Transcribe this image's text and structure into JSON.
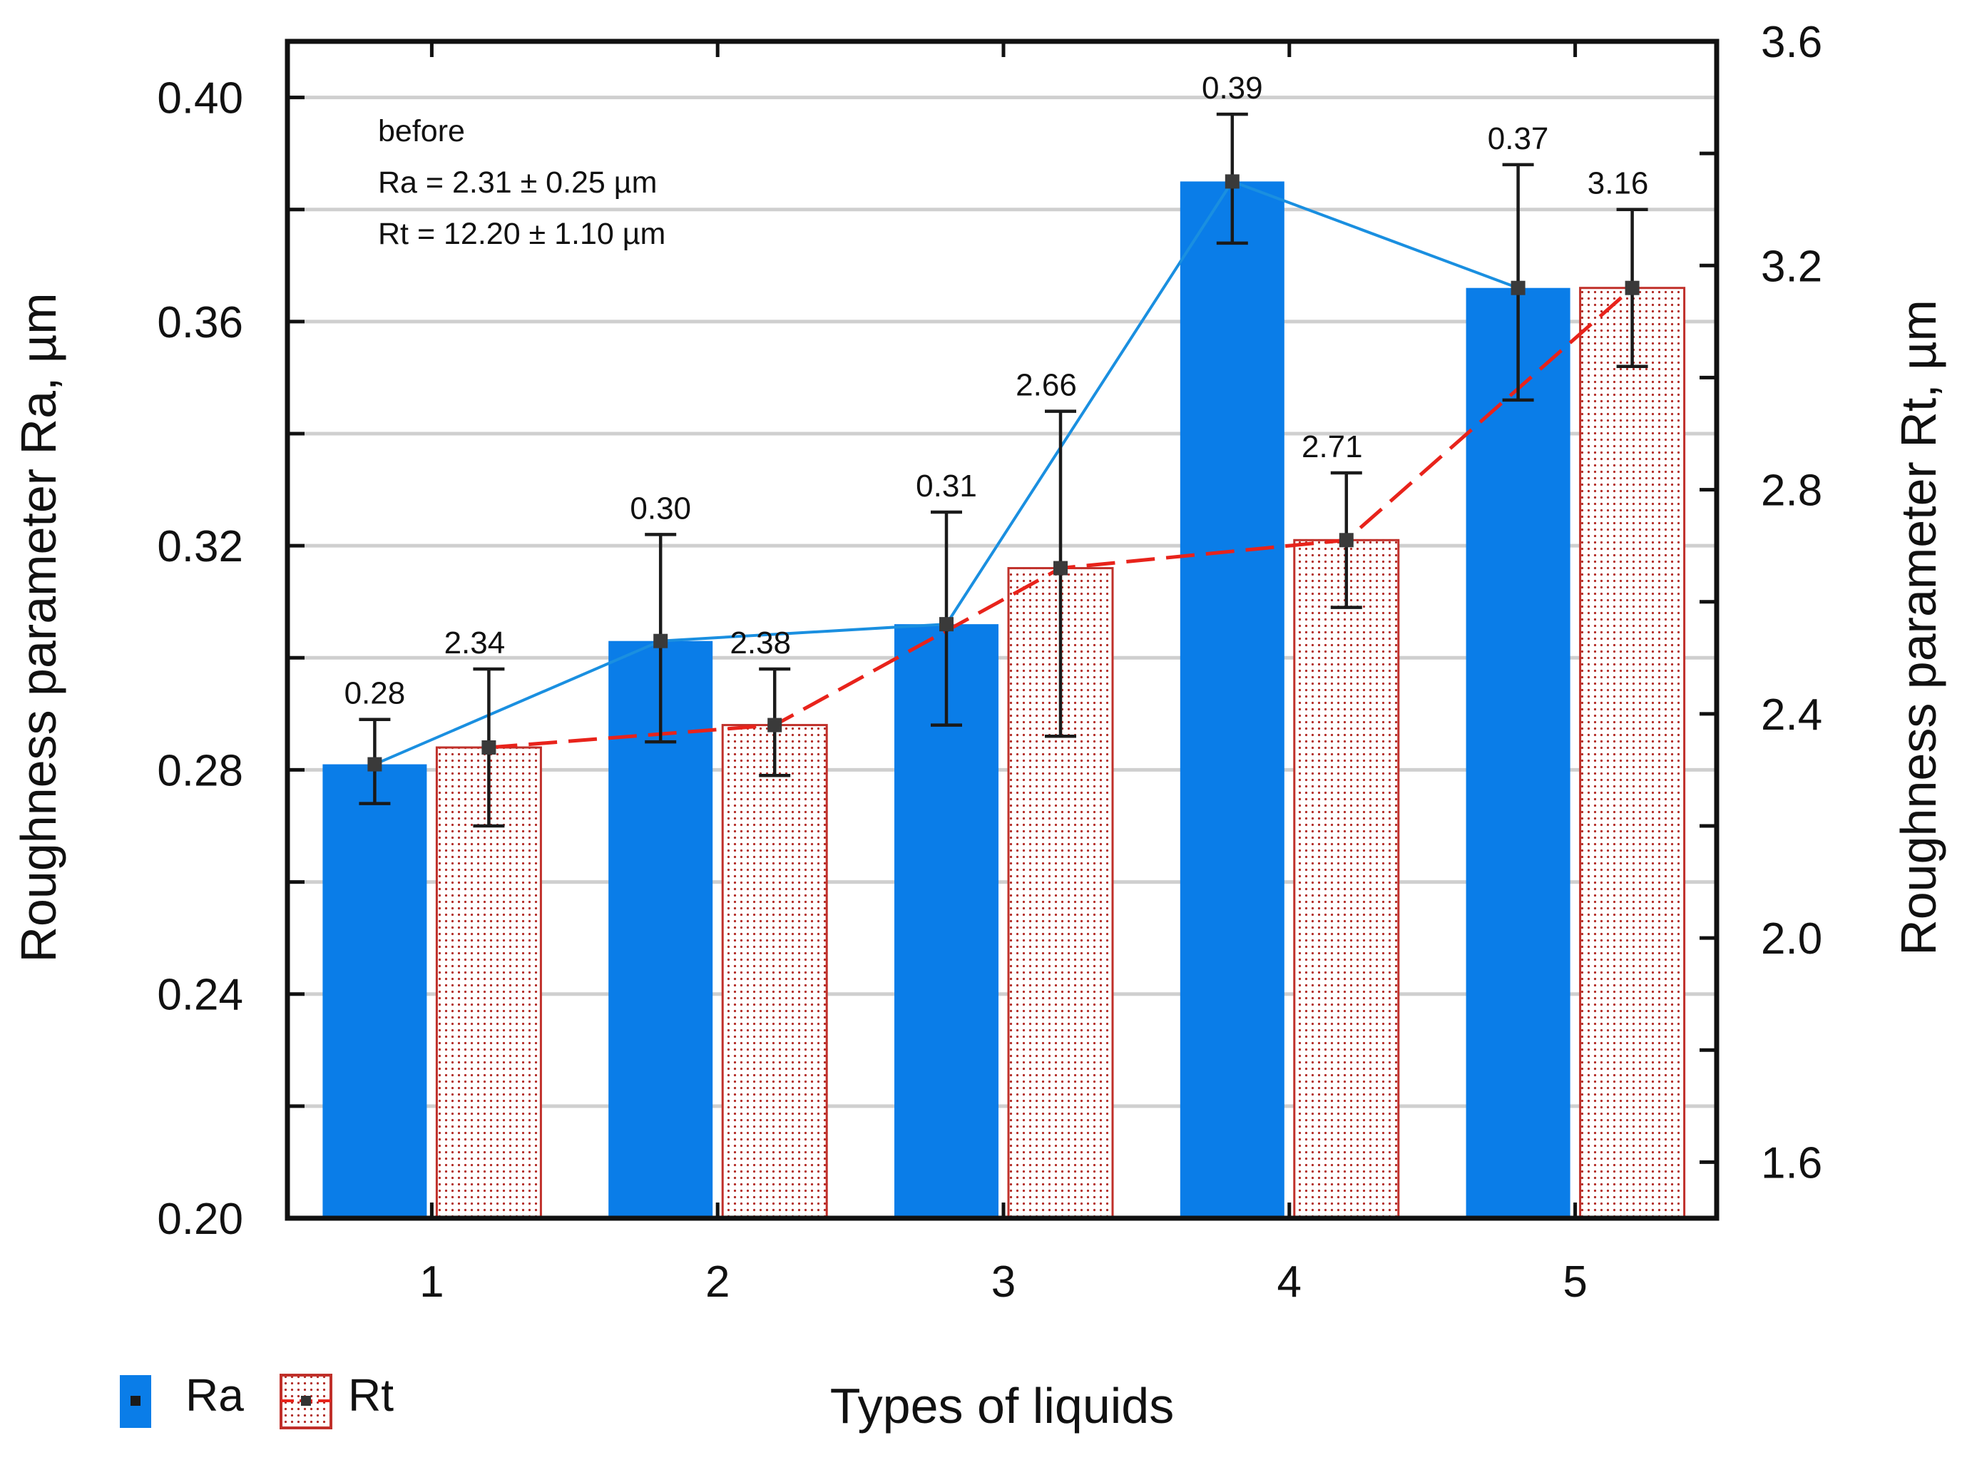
{
  "chart_data": {
    "type": "bar",
    "title": "",
    "xlabel": "Types of liquids",
    "ylabel": "Roughness parameter Ra, µm",
    "y2label": "Roughness parameter Rt, µm",
    "categories": [
      "1",
      "2",
      "3",
      "4",
      "5"
    ],
    "ylim": [
      0.2,
      0.41
    ],
    "y2lim": [
      1.5,
      3.6
    ],
    "yticks": [
      "0.20",
      "0.24",
      "0.28",
      "0.32",
      "0.36",
      "0.40"
    ],
    "y2ticks": [
      "1.6",
      "2.0",
      "2.4",
      "2.8",
      "3.2",
      "3.6"
    ],
    "grid": true,
    "legend_position": "bottom-left",
    "series": [
      {
        "name": "Ra",
        "axis": "left",
        "color": "#0a7de8",
        "line_color": "#1a8fe0",
        "line_style": "solid",
        "values": [
          0.281,
          0.303,
          0.306,
          0.385,
          0.366
        ],
        "err_low": [
          0.274,
          0.285,
          0.288,
          0.374,
          0.346
        ],
        "err_high": [
          0.289,
          0.322,
          0.326,
          0.397,
          0.388
        ],
        "labels": [
          "0.28",
          "0.30",
          "0.31",
          "0.39",
          "0.37"
        ]
      },
      {
        "name": "Rt",
        "axis": "right",
        "color": "#c0302a",
        "line_color": "#e8231b",
        "line_style": "dashed",
        "values": [
          2.34,
          2.38,
          2.66,
          2.71,
          3.16
        ],
        "err_low": [
          2.2,
          2.29,
          2.36,
          2.59,
          3.02
        ],
        "err_high": [
          2.48,
          2.48,
          2.94,
          2.83,
          3.3
        ],
        "labels": [
          "2.34",
          "2.38",
          "2.66",
          "2.71",
          "3.16"
        ]
      }
    ],
    "annotation": [
      "before",
      "Ra = 2.31 ± 0.25 µm",
      "Rt = 12.20 ± 1.10 µm"
    ]
  }
}
